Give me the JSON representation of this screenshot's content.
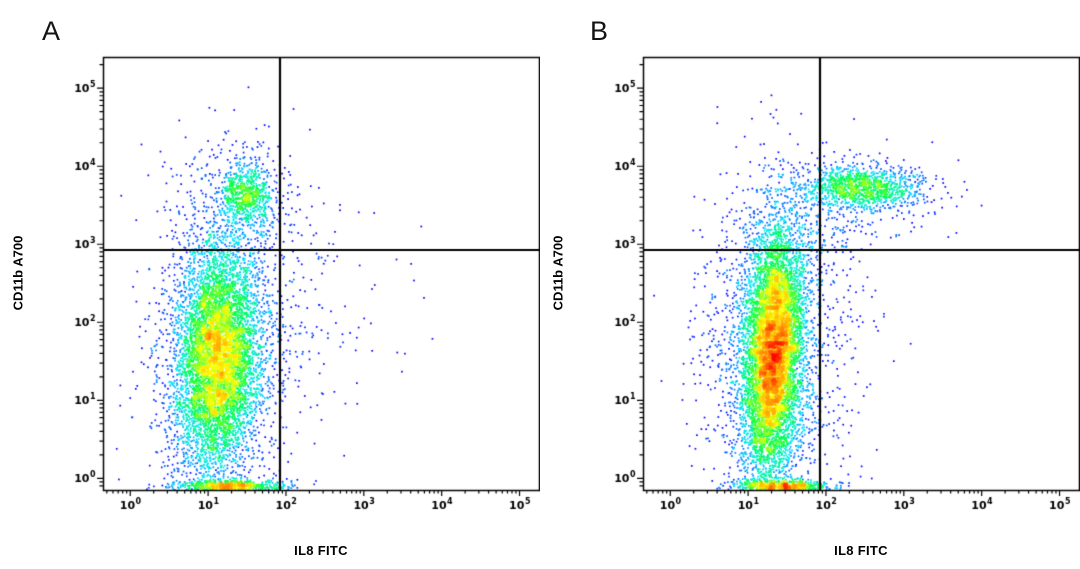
{
  "figure": {
    "background": "#ffffff",
    "frame_color": "#000000",
    "gate_line_color": "#000000"
  },
  "colormap": [
    {
      "t": 0.0,
      "color": "#00008c"
    },
    {
      "t": 0.18,
      "color": "#0000ff"
    },
    {
      "t": 0.38,
      "color": "#00e5ff"
    },
    {
      "t": 0.55,
      "color": "#00ff40"
    },
    {
      "t": 0.72,
      "color": "#ffff00"
    },
    {
      "t": 0.87,
      "color": "#ff8c00"
    },
    {
      "t": 1.0,
      "color": "#ff0000"
    }
  ],
  "chart_data": [
    {
      "type": "scatter",
      "panel": "A",
      "xlabel": "IL8 FITC",
      "ylabel": "CD11b A700",
      "x_scale": "log10",
      "y_scale": "log10",
      "x_log_range": [
        -0.35,
        5.25
      ],
      "y_log_range": [
        -0.15,
        5.4
      ],
      "x_tick_exponents": [
        0,
        1,
        2,
        3,
        4,
        5
      ],
      "y_tick_exponents": [
        0,
        1,
        2,
        3,
        4,
        5
      ],
      "gate_x_log": 1.92,
      "gate_y_log": 2.93,
      "intensity": 0.88,
      "populations": [
        {
          "name": "cd11b-low-main",
          "center_log": [
            1.12,
            1.55
          ],
          "sigma_log": [
            0.26,
            0.72
          ],
          "corr": 0.1,
          "count": 6500
        },
        {
          "name": "cd11b-low-halo",
          "center_log": [
            1.15,
            1.5
          ],
          "sigma_log": [
            0.5,
            1.05
          ],
          "corr": 0,
          "count": 1300
        },
        {
          "name": "cd11b-high-cluster",
          "center_log": [
            1.5,
            3.62
          ],
          "sigma_log": [
            0.17,
            0.22
          ],
          "corr": 0,
          "count": 700
        },
        {
          "name": "cd11b-high-halo",
          "center_log": [
            1.45,
            3.5
          ],
          "sigma_log": [
            0.4,
            0.45
          ],
          "corr": 0,
          "count": 280
        },
        {
          "name": "axis-baseline",
          "center_log": [
            1.3,
            -0.1
          ],
          "sigma_log": [
            0.33,
            0.035
          ],
          "corr": 0,
          "count": 650
        },
        {
          "name": "sparse-right",
          "center_log": [
            2.2,
            2.2
          ],
          "sigma_log": [
            0.65,
            0.7
          ],
          "corr": 0,
          "count": 130
        }
      ]
    },
    {
      "type": "scatter",
      "panel": "B",
      "xlabel": "IL8 FITC",
      "ylabel": "CD11b A700",
      "x_scale": "log10",
      "y_scale": "log10",
      "x_log_range": [
        -0.35,
        5.25
      ],
      "y_log_range": [
        -0.15,
        5.4
      ],
      "x_tick_exponents": [
        0,
        1,
        2,
        3,
        4,
        5
      ],
      "y_tick_exponents": [
        0,
        1,
        2,
        3,
        4,
        5
      ],
      "gate_x_log": 1.92,
      "gate_y_log": 2.93,
      "intensity": 1.0,
      "populations": [
        {
          "name": "cd11b-low-main",
          "center_log": [
            1.32,
            1.6
          ],
          "sigma_log": [
            0.19,
            0.8
          ],
          "corr": 0.22,
          "count": 7500
        },
        {
          "name": "cd11b-low-halo",
          "center_log": [
            1.28,
            1.6
          ],
          "sigma_log": [
            0.45,
            1.1
          ],
          "corr": 0,
          "count": 1500
        },
        {
          "name": "il8-pos-cd11b-high-cluster",
          "center_log": [
            2.45,
            3.72
          ],
          "sigma_log": [
            0.38,
            0.13
          ],
          "corr": 0,
          "count": 1100
        },
        {
          "name": "cd11b-high-halo",
          "center_log": [
            2.4,
            3.65
          ],
          "sigma_log": [
            0.6,
            0.3
          ],
          "corr": 0,
          "count": 260
        },
        {
          "name": "bridge",
          "center_log": [
            1.95,
            3.0
          ],
          "sigma_log": [
            0.3,
            0.4
          ],
          "corr": 0.3,
          "count": 140
        },
        {
          "name": "axis-baseline",
          "center_log": [
            1.45,
            -0.1
          ],
          "sigma_log": [
            0.3,
            0.035
          ],
          "corr": 0,
          "count": 650
        },
        {
          "name": "sparse-right",
          "center_log": [
            2.0,
            1.6
          ],
          "sigma_log": [
            0.45,
            0.8
          ],
          "corr": 0,
          "count": 110
        }
      ]
    }
  ]
}
